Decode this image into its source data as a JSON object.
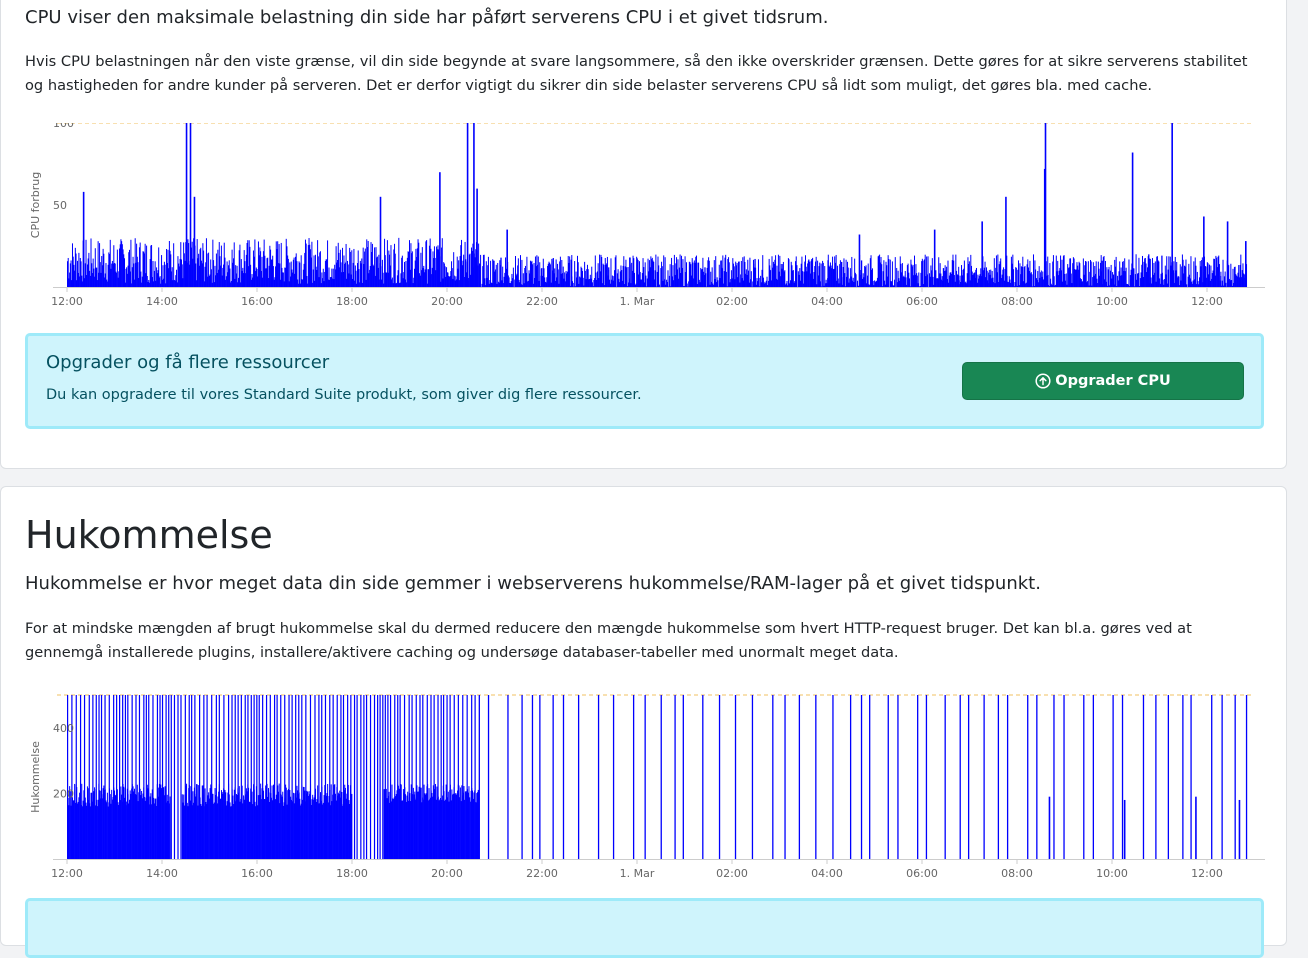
{
  "cpu": {
    "lead": "CPU viser den maksimale belastning din side har påført serverens CPU i et givet tidsrum.",
    "description": "Hvis CPU belastningen når den viste grænse, vil din side begynde at svare langsommere, så den ikke overskrider grænsen. Dette gøres for at sikre serverens stabilitet og hastigheden for andre kunder på serveren. Det er derfor vigtigt du sikrer din side belaster serverens CPU så lidt som muligt, det gøres bla. med cache.",
    "alert": {
      "title": "Opgrader og få flere ressourcer",
      "text": "Du kan opgradere til vores Standard Suite produkt, som giver dig flere ressourcer.",
      "button_label": "Opgrader CPU",
      "button_icon": "arrow-up-circle-icon"
    }
  },
  "memory": {
    "title": "Hukommelse",
    "lead": "Hukommelse er hvor meget data din side gemmer i webserverens hukommelse/RAM-lager på et givet tidspunkt.",
    "description": "For at mindske mængden af brugt hukommelse skal du dermed reducere den mængde hukommelse som hvert HTTP-request bruger. Det kan bl.a. gøres ved at gennemgå installerede plugins, installere/aktivere caching og undersøge databaser-tabeller med unormalt meget data."
  },
  "colors": {
    "series": "#0000ff",
    "limit_line": "#f0c060",
    "alert_bg": "#cff4fc",
    "alert_text": "#055160",
    "button_bg": "#198754"
  },
  "chart_data": [
    {
      "type": "bar",
      "ylabel": "CPU forbrug",
      "ylim": [
        0,
        100
      ],
      "yticks": [
        50,
        100
      ],
      "limit": 100,
      "xticks": [
        "12:00",
        "14:00",
        "16:00",
        "18:00",
        "20:00",
        "22:00",
        "1. Mar",
        "02:00",
        "04:00",
        "06:00",
        "08:00",
        "10:00",
        "12:00"
      ],
      "series": [
        {
          "segments": [
            {
              "from": "12:00",
              "to": "20:40",
              "min": 2,
              "max": 30
            },
            {
              "from": "20:40",
              "to": "12:50",
              "min": 0,
              "max": 20
            }
          ],
          "spikes": [
            {
              "x": "12:20",
              "y": 58
            },
            {
              "x": "14:30",
              "y": 100
            },
            {
              "x": "14:35",
              "y": 100
            },
            {
              "x": "14:40",
              "y": 55
            },
            {
              "x": "18:35",
              "y": 55
            },
            {
              "x": "19:50",
              "y": 70
            },
            {
              "x": "20:25",
              "y": 100
            },
            {
              "x": "20:33",
              "y": 100
            },
            {
              "x": "20:37",
              "y": 60
            },
            {
              "x": "21:15",
              "y": 35
            },
            {
              "x": "23:50",
              "y": 18
            },
            {
              "x": "03:40",
              "y": 17
            },
            {
              "x": "04:40",
              "y": 32
            },
            {
              "x": "06:15",
              "y": 35
            },
            {
              "x": "07:15",
              "y": 40
            },
            {
              "x": "07:45",
              "y": 55
            },
            {
              "x": "08:35",
              "y": 100
            },
            {
              "x": "08:34",
              "y": 72
            },
            {
              "x": "10:25",
              "y": 82
            },
            {
              "x": "11:15",
              "y": 100
            },
            {
              "x": "11:55",
              "y": 43
            },
            {
              "x": "12:25",
              "y": 40
            },
            {
              "x": "12:48",
              "y": 28
            }
          ]
        }
      ]
    },
    {
      "type": "bar",
      "ylabel": "Hukommelse",
      "ylim": [
        0,
        500
      ],
      "yticks": [
        200,
        400
      ],
      "limit": 500,
      "xticks": [
        "12:00",
        "14:00",
        "16:00",
        "18:00",
        "20:00",
        "22:00",
        "1. Mar",
        "02:00",
        "04:00",
        "06:00",
        "08:00",
        "10:00",
        "12:00"
      ],
      "series": [
        {
          "segments": [
            {
              "from": "12:00",
              "to": "14:10",
              "min": 160,
              "max": 230
            },
            {
              "from": "14:25",
              "to": "18:00",
              "min": 160,
              "max": 230
            },
            {
              "from": "18:40",
              "to": "20:40",
              "min": 170,
              "max": 230
            },
            {
              "from": "20:40",
              "to": "12:50",
              "min": 0,
              "max": 0
            }
          ],
          "spikes": [
            {
              "x": "08:40",
              "y": 190
            },
            {
              "x": "10:15",
              "y": 180
            },
            {
              "x": "11:45",
              "y": 190
            },
            {
              "x": "12:40",
              "y": 180
            }
          ]
        }
      ]
    }
  ]
}
